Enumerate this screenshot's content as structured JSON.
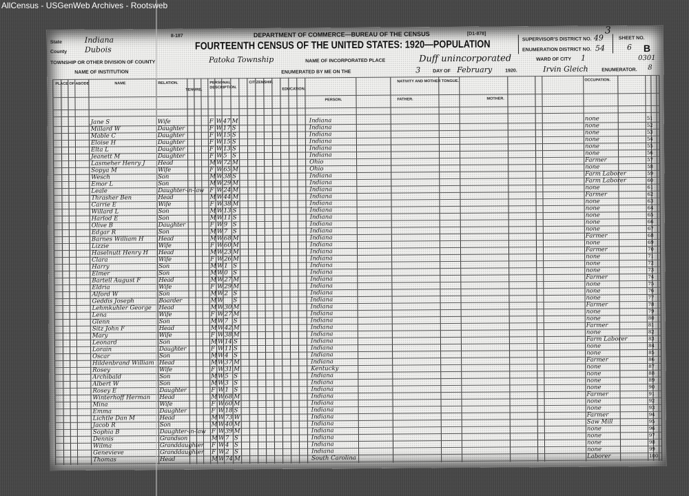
{
  "site_title": "AllCensus - USGenWeb Archives - Rootsweb",
  "form": {
    "form_code": "8-187",
    "department": "DEPARTMENT OF COMMERCE—BUREAU OF THE CENSUS",
    "title": "FOURTEENTH CENSUS OF THE UNITED STATES: 1920—POPULATION",
    "form_number": "[D1-878]",
    "state_label": "State",
    "state_value": "Indiana",
    "county_label": "County",
    "county_value": "Dubois",
    "township_label": "TOWNSHIP OR OTHER DIVISION OF COUNTY",
    "township_value": "Patoka Township",
    "institution_label": "NAME OF INSTITUTION",
    "incorporated_label": "NAME OF INCORPORATED PLACE",
    "incorporated_value": "Duff unincorporated",
    "ward_label": "WARD OF CITY",
    "ward_value": "1",
    "enumerated_label": "ENUMERATED BY ME ON THE",
    "day_value": "3",
    "day_label": "DAY OF",
    "month_value": "February",
    "year_value": "1920.",
    "enumerator_value": "Irvin Gleich",
    "enumerator_label": "ENUMERATOR.",
    "supervisor_label": "SUPERVISOR'S DISTRICT NO.",
    "supervisor_value": "3",
    "supervisor_sub": "49",
    "enumeration_label": "ENUMERATION DISTRICT NO.",
    "enumeration_value": "54",
    "sheet_label": "SHEET NO.",
    "sheet_value": "6",
    "sheet_side": "B",
    "margin_note_1": "0301",
    "margin_note_2": "8"
  },
  "columns": {
    "place": "PLACE OF ABODE",
    "name": "NAME",
    "relation": "RELATION.",
    "tenure": "TENURE.",
    "personal": "PERSONAL DESCRIPTION.",
    "citizenship": "CITIZENSHIP.",
    "education": "EDUCATION.",
    "nativity": "NATIVITY AND MOTHER TONGUE.",
    "person": "PERSON.",
    "father": "FATHER.",
    "mother": "MOTHER.",
    "occupation": "OCCUPATION."
  },
  "rows": [
    {
      "n": "51",
      "name": "Jane S",
      "rel": "Wife",
      "sex": "F",
      "race": "W",
      "age": "47",
      "ms": "M",
      "bp": "Indiana",
      "occ": "none"
    },
    {
      "n": "52",
      "name": "Millard W",
      "rel": "Daughter",
      "sex": "F",
      "race": "W",
      "age": "17",
      "ms": "S",
      "bp": "Indiana",
      "occ": "none"
    },
    {
      "n": "53",
      "name": "Mable C",
      "rel": "Daughter",
      "sex": "F",
      "race": "W",
      "age": "15",
      "ms": "S",
      "bp": "Indiana",
      "occ": "none"
    },
    {
      "n": "54",
      "name": "Eloise H",
      "rel": "Daughter",
      "sex": "F",
      "race": "W",
      "age": "15",
      "ms": "S",
      "bp": "Indiana",
      "occ": "none"
    },
    {
      "n": "55",
      "name": "Elta L",
      "rel": "Daughter",
      "sex": "F",
      "race": "W",
      "age": "13",
      "ms": "S",
      "bp": "Indiana",
      "occ": "none"
    },
    {
      "n": "56",
      "name": "Jeanett M",
      "rel": "Daughter",
      "sex": "F",
      "race": "W",
      "age": "5",
      "ms": "S",
      "bp": "Indiana",
      "occ": "none"
    },
    {
      "n": "57",
      "name": "Lasmeher Henry J",
      "rel": "Head",
      "sex": "M",
      "race": "W",
      "age": "72",
      "ms": "M",
      "bp": "Ohio",
      "occ": "Farmer"
    },
    {
      "n": "58",
      "name": "Sopya M",
      "rel": "Wife",
      "sex": "F",
      "race": "W",
      "age": "65",
      "ms": "M",
      "bp": "Ohio",
      "occ": "none"
    },
    {
      "n": "59",
      "name": "Wesch",
      "rel": "Son",
      "sex": "M",
      "race": "W",
      "age": "38",
      "ms": "S",
      "bp": "Indiana",
      "occ": "Farm Laborer"
    },
    {
      "n": "60",
      "name": "Emor L",
      "rel": "Son",
      "sex": "M",
      "race": "W",
      "age": "29",
      "ms": "M",
      "bp": "Indiana",
      "occ": "Farm Laborer"
    },
    {
      "n": "61",
      "name": "Leale",
      "rel": "Daughter-in-law",
      "sex": "F",
      "race": "W",
      "age": "24",
      "ms": "M",
      "bp": "Indiana",
      "occ": "none"
    },
    {
      "n": "62",
      "name": "Thrasher Ben",
      "rel": "Head",
      "sex": "M",
      "race": "W",
      "age": "44",
      "ms": "M",
      "bp": "Indiana",
      "occ": "Farmer"
    },
    {
      "n": "63",
      "name": "Carrie E",
      "rel": "Wife",
      "sex": "F",
      "race": "W",
      "age": "38",
      "ms": "M",
      "bp": "Indiana",
      "occ": "none"
    },
    {
      "n": "64",
      "name": "Willard L",
      "rel": "Son",
      "sex": "M",
      "race": "W",
      "age": "13",
      "ms": "S",
      "bp": "Indiana",
      "occ": "none"
    },
    {
      "n": "65",
      "name": "Harlod E",
      "rel": "Son",
      "sex": "M",
      "race": "W",
      "age": "11",
      "ms": "S",
      "bp": "Indiana",
      "occ": "none"
    },
    {
      "n": "66",
      "name": "Olive B",
      "rel": "Daughter",
      "sex": "F",
      "race": "W",
      "age": "9",
      "ms": "S",
      "bp": "Indiana",
      "occ": "none"
    },
    {
      "n": "67",
      "name": "Edgar R",
      "rel": "Son",
      "sex": "M",
      "race": "W",
      "age": "7",
      "ms": "S",
      "bp": "Indiana",
      "occ": "none"
    },
    {
      "n": "68",
      "name": "Barnes William H",
      "rel": "Head",
      "sex": "M",
      "race": "W",
      "age": "68",
      "ms": "M",
      "bp": "Indiana",
      "occ": "Farmer"
    },
    {
      "n": "69",
      "name": "Lizzie",
      "rel": "Wife",
      "sex": "F",
      "race": "W",
      "age": "60",
      "ms": "M",
      "bp": "Indiana",
      "occ": "none"
    },
    {
      "n": "70",
      "name": "Haselnutt Henry H",
      "rel": "Head",
      "sex": "M",
      "race": "W",
      "age": "23",
      "ms": "M",
      "bp": "Indiana",
      "occ": "Farmer"
    },
    {
      "n": "71",
      "name": "Clara",
      "rel": "Wife",
      "sex": "F",
      "race": "W",
      "age": "26",
      "ms": "M",
      "bp": "Indiana",
      "occ": "none"
    },
    {
      "n": "72",
      "name": "Harry",
      "rel": "Son",
      "sex": "M",
      "race": "W",
      "age": "1",
      "ms": "S",
      "bp": "Indiana",
      "occ": "none"
    },
    {
      "n": "73",
      "name": "Elmer",
      "rel": "Son",
      "sex": "M",
      "race": "W",
      "age": "0",
      "ms": "S",
      "bp": "Indiana",
      "occ": "none"
    },
    {
      "n": "74",
      "name": "Bartell August F",
      "rel": "Head",
      "sex": "M",
      "race": "W",
      "age": "27",
      "ms": "M",
      "bp": "Indiana",
      "occ": "Farmer"
    },
    {
      "n": "75",
      "name": "Eldria",
      "rel": "Wife",
      "sex": "F",
      "race": "W",
      "age": "29",
      "ms": "M",
      "bp": "Indiana",
      "occ": "none"
    },
    {
      "n": "76",
      "name": "Alford W",
      "rel": "Son",
      "sex": "M",
      "race": "W",
      "age": "2",
      "ms": "S",
      "bp": "Indiana",
      "occ": "none"
    },
    {
      "n": "77",
      "name": "Geddis Joseph",
      "rel": "Boarder",
      "sex": "M",
      "race": "W",
      "age": "",
      "ms": "S",
      "bp": "Indiana",
      "occ": "none"
    },
    {
      "n": "78",
      "name": "Lehmkuhler George",
      "rel": "Head",
      "sex": "M",
      "race": "W",
      "age": "30",
      "ms": "M",
      "bp": "Indiana",
      "occ": "Farmer"
    },
    {
      "n": "79",
      "name": "Lena",
      "rel": "Wife",
      "sex": "F",
      "race": "W",
      "age": "27",
      "ms": "M",
      "bp": "Indiana",
      "occ": "none"
    },
    {
      "n": "80",
      "name": "Glenn",
      "rel": "Son",
      "sex": "M",
      "race": "W",
      "age": "7",
      "ms": "S",
      "bp": "Indiana",
      "occ": "none"
    },
    {
      "n": "81",
      "name": "Sitz John F",
      "rel": "Head",
      "sex": "M",
      "race": "W",
      "age": "42",
      "ms": "M",
      "bp": "Indiana",
      "occ": "Farmer"
    },
    {
      "n": "82",
      "name": "Mary",
      "rel": "Wife",
      "sex": "F",
      "race": "W",
      "age": "38",
      "ms": "M",
      "bp": "Indiana",
      "occ": "none"
    },
    {
      "n": "83",
      "name": "Leonard",
      "rel": "Son",
      "sex": "M",
      "race": "W",
      "age": "14",
      "ms": "S",
      "bp": "Indiana",
      "occ": "Farm Laborer"
    },
    {
      "n": "84",
      "name": "Lorain",
      "rel": "Daughter",
      "sex": "F",
      "race": "W",
      "age": "11",
      "ms": "S",
      "bp": "Indiana",
      "occ": "none"
    },
    {
      "n": "85",
      "name": "Oscar",
      "rel": "Son",
      "sex": "M",
      "race": "W",
      "age": "4",
      "ms": "S",
      "bp": "Indiana",
      "occ": "none"
    },
    {
      "n": "86",
      "name": "Hildenbrand William",
      "rel": "Head",
      "sex": "M",
      "race": "W",
      "age": "37",
      "ms": "M",
      "bp": "Indiana",
      "occ": "Farmer"
    },
    {
      "n": "87",
      "name": "Rosey",
      "rel": "Wife",
      "sex": "F",
      "race": "W",
      "age": "31",
      "ms": "M",
      "bp": "Kentucky",
      "occ": "none"
    },
    {
      "n": "88",
      "name": "Archibald",
      "rel": "Son",
      "sex": "M",
      "race": "W",
      "age": "5",
      "ms": "S",
      "bp": "Indiana",
      "occ": "none"
    },
    {
      "n": "89",
      "name": "Albert W",
      "rel": "Son",
      "sex": "M",
      "race": "W",
      "age": "3",
      "ms": "S",
      "bp": "Indiana",
      "occ": "none"
    },
    {
      "n": "90",
      "name": "Rosey E",
      "rel": "Daughter",
      "sex": "F",
      "race": "W",
      "age": "1",
      "ms": "S",
      "bp": "Indiana",
      "occ": "none"
    },
    {
      "n": "91",
      "name": "Winterhoff Herman",
      "rel": "Head",
      "sex": "M",
      "race": "W",
      "age": "68",
      "ms": "M",
      "bp": "Indiana",
      "occ": "Farmer"
    },
    {
      "n": "92",
      "name": "Mina",
      "rel": "Wife",
      "sex": "F",
      "race": "W",
      "age": "60",
      "ms": "M",
      "bp": "Indiana",
      "occ": "none"
    },
    {
      "n": "93",
      "name": "Emma",
      "rel": "Daughter",
      "sex": "F",
      "race": "W",
      "age": "18",
      "ms": "S",
      "bp": "Indiana",
      "occ": "none"
    },
    {
      "n": "94",
      "name": "Lichtle Dan M",
      "rel": "Head",
      "sex": "M",
      "race": "W",
      "age": "73",
      "ms": "W",
      "bp": "Indiana",
      "occ": "Farmer"
    },
    {
      "n": "95",
      "name": "Jacob R",
      "rel": "Son",
      "sex": "M",
      "race": "W",
      "age": "40",
      "ms": "M",
      "bp": "Indiana",
      "occ": "Saw Mill"
    },
    {
      "n": "96",
      "name": "Sophia B",
      "rel": "Daughter-in-law",
      "sex": "F",
      "race": "W",
      "age": "39",
      "ms": "M",
      "bp": "Indiana",
      "occ": "none"
    },
    {
      "n": "97",
      "name": "Dennis",
      "rel": "Grandson",
      "sex": "M",
      "race": "W",
      "age": "7",
      "ms": "S",
      "bp": "Indiana",
      "occ": "none"
    },
    {
      "n": "98",
      "name": "Wilma",
      "rel": "Granddaughter",
      "sex": "F",
      "race": "W",
      "age": "4",
      "ms": "S",
      "bp": "Indiana",
      "occ": "none"
    },
    {
      "n": "99",
      "name": "Genevieve",
      "rel": "Granddaughter",
      "sex": "F",
      "race": "W",
      "age": "2",
      "ms": "S",
      "bp": "Indiana",
      "occ": "none"
    },
    {
      "n": "100",
      "name": "Thomas",
      "rel": "Head",
      "sex": "M",
      "race": "W",
      "age": "74",
      "ms": "M",
      "bp": "South Carolina",
      "occ": "Laborer"
    }
  ]
}
